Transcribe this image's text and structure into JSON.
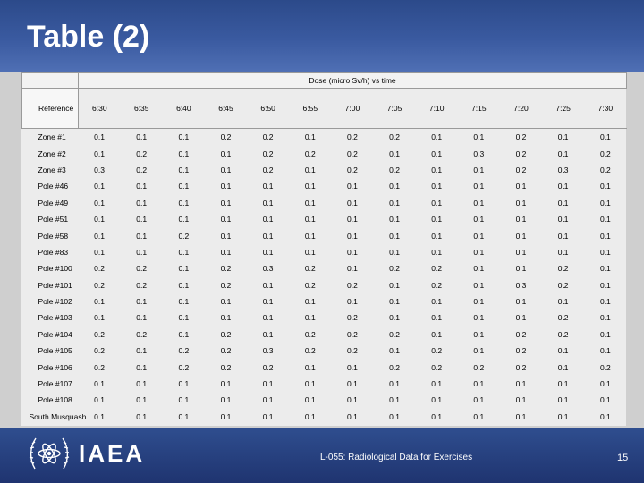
{
  "slide": {
    "title": "Table (2)",
    "footer_note": "L-055: Radiological Data for Exercises",
    "page_number": "15",
    "logo_text": "IAEA"
  },
  "table": {
    "super_header": "Dose (micro Sv/h)  vs time",
    "reference_label": "Reference",
    "time_columns": [
      "6:30",
      "6:35",
      "6:40",
      "6:45",
      "6:50",
      "6:55",
      "7:00",
      "7:05",
      "7:10",
      "7:15",
      "7:20",
      "7:25",
      "7:30"
    ],
    "rows": [
      {
        "label": "Zone #1",
        "values": [
          "0.1",
          "0.1",
          "0.1",
          "0.2",
          "0.2",
          "0.1",
          "0.2",
          "0.2",
          "0.1",
          "0.1",
          "0.2",
          "0.1",
          "0.1"
        ]
      },
      {
        "label": "Zone #2",
        "values": [
          "0.1",
          "0.2",
          "0.1",
          "0.1",
          "0.2",
          "0.2",
          "0.2",
          "0.1",
          "0.1",
          "0.3",
          "0.2",
          "0.1",
          "0.2"
        ]
      },
      {
        "label": "Zone #3",
        "values": [
          "0.3",
          "0.2",
          "0.1",
          "0.1",
          "0.2",
          "0.1",
          "0.2",
          "0.2",
          "0.1",
          "0.1",
          "0.2",
          "0.3",
          "0.2"
        ]
      },
      {
        "label": "Pole #46",
        "values": [
          "0.1",
          "0.1",
          "0.1",
          "0.1",
          "0.1",
          "0.1",
          "0.1",
          "0.1",
          "0.1",
          "0.1",
          "0.1",
          "0.1",
          "0.1"
        ]
      },
      {
        "label": "Pole #49",
        "values": [
          "0.1",
          "0.1",
          "0.1",
          "0.1",
          "0.1",
          "0.1",
          "0.1",
          "0.1",
          "0.1",
          "0.1",
          "0.1",
          "0.1",
          "0.1"
        ]
      },
      {
        "label": "Pole #51",
        "values": [
          "0.1",
          "0.1",
          "0.1",
          "0.1",
          "0.1",
          "0.1",
          "0.1",
          "0.1",
          "0.1",
          "0.1",
          "0.1",
          "0.1",
          "0.1"
        ]
      },
      {
        "label": "Pole #58",
        "values": [
          "0.1",
          "0.1",
          "0.2",
          "0.1",
          "0.1",
          "0.1",
          "0.1",
          "0.1",
          "0.1",
          "0.1",
          "0.1",
          "0.1",
          "0.1"
        ]
      },
      {
        "label": "Pole #83",
        "values": [
          "0.1",
          "0.1",
          "0.1",
          "0.1",
          "0.1",
          "0.1",
          "0.1",
          "0.1",
          "0.1",
          "0.1",
          "0.1",
          "0.1",
          "0.1"
        ]
      },
      {
        "label": "Pole #100",
        "values": [
          "0.2",
          "0.2",
          "0.1",
          "0.2",
          "0.3",
          "0.2",
          "0.1",
          "0.2",
          "0.2",
          "0.1",
          "0.1",
          "0.2",
          "0.1"
        ]
      },
      {
        "label": "Pole #101",
        "values": [
          "0.2",
          "0.2",
          "0.1",
          "0.2",
          "0.1",
          "0.2",
          "0.2",
          "0.1",
          "0.2",
          "0.1",
          "0.3",
          "0.2",
          "0.1"
        ]
      },
      {
        "label": "Pole #102",
        "values": [
          "0.1",
          "0.1",
          "0.1",
          "0.1",
          "0.1",
          "0.1",
          "0.1",
          "0.1",
          "0.1",
          "0.1",
          "0.1",
          "0.1",
          "0.1"
        ]
      },
      {
        "label": "Pole #103",
        "values": [
          "0.1",
          "0.1",
          "0.1",
          "0.1",
          "0.1",
          "0.1",
          "0.2",
          "0.1",
          "0.1",
          "0.1",
          "0.1",
          "0.2",
          "0.1"
        ]
      },
      {
        "label": "Pole #104",
        "values": [
          "0.2",
          "0.2",
          "0.1",
          "0.2",
          "0.1",
          "0.2",
          "0.2",
          "0.2",
          "0.1",
          "0.1",
          "0.2",
          "0.2",
          "0.1"
        ]
      },
      {
        "label": "Pole #105",
        "values": [
          "0.2",
          "0.1",
          "0.2",
          "0.2",
          "0.3",
          "0.2",
          "0.2",
          "0.1",
          "0.2",
          "0.1",
          "0.2",
          "0.1",
          "0.1"
        ]
      },
      {
        "label": "Pole #106",
        "values": [
          "0.2",
          "0.1",
          "0.2",
          "0.2",
          "0.2",
          "0.1",
          "0.1",
          "0.2",
          "0.2",
          "0.2",
          "0.2",
          "0.1",
          "0.2"
        ]
      },
      {
        "label": "Pole #107",
        "values": [
          "0.1",
          "0.1",
          "0.1",
          "0.1",
          "0.1",
          "0.1",
          "0.1",
          "0.1",
          "0.1",
          "0.1",
          "0.1",
          "0.1",
          "0.1"
        ]
      },
      {
        "label": "Pole #108",
        "values": [
          "0.1",
          "0.1",
          "0.1",
          "0.1",
          "0.1",
          "0.1",
          "0.1",
          "0.1",
          "0.1",
          "0.1",
          "0.1",
          "0.1",
          "0.1"
        ]
      },
      {
        "label": "South Musquash",
        "values": [
          "0.1",
          "0.1",
          "0.1",
          "0.1",
          "0.1",
          "0.1",
          "0.1",
          "0.1",
          "0.1",
          "0.1",
          "0.1",
          "0.1",
          "0.1"
        ]
      }
    ]
  }
}
